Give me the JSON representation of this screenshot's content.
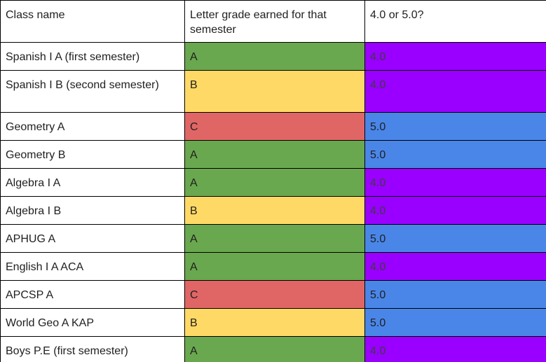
{
  "header": {
    "class_name": "Class name",
    "letter_grade": "Letter grade earned for that semester",
    "scale": "4.0 or 5.0?"
  },
  "colors": {
    "A": "#6aa84f",
    "B": "#ffd966",
    "C": "#e06666",
    "4.0": "#9900ff",
    "5.0": "#4a86e8"
  },
  "rows": [
    {
      "name": "Spanish I A (first semester)",
      "grade": "A",
      "scale": "4.0"
    },
    {
      "name": "Spanish I B (second semester)",
      "grade": "B",
      "scale": "4.0"
    },
    {
      "name": "Geometry A",
      "grade": "C",
      "scale": "5.0"
    },
    {
      "name": "Geometry B",
      "grade": "A",
      "scale": "5.0"
    },
    {
      "name": "Algebra I A",
      "grade": "A",
      "scale": "4.0"
    },
    {
      "name": "Algebra I B",
      "grade": "B",
      "scale": "4.0"
    },
    {
      "name": "APHUG A",
      "grade": "A",
      "scale": "5.0"
    },
    {
      "name": "English I A ACA",
      "grade": "A",
      "scale": "4.0"
    },
    {
      "name": "APCSP A",
      "grade": "C",
      "scale": "5.0"
    },
    {
      "name": "World Geo A KAP",
      "grade": "B",
      "scale": "5.0"
    },
    {
      "name": "Boys P.E (first semester)",
      "grade": "A",
      "scale": "4.0"
    }
  ]
}
